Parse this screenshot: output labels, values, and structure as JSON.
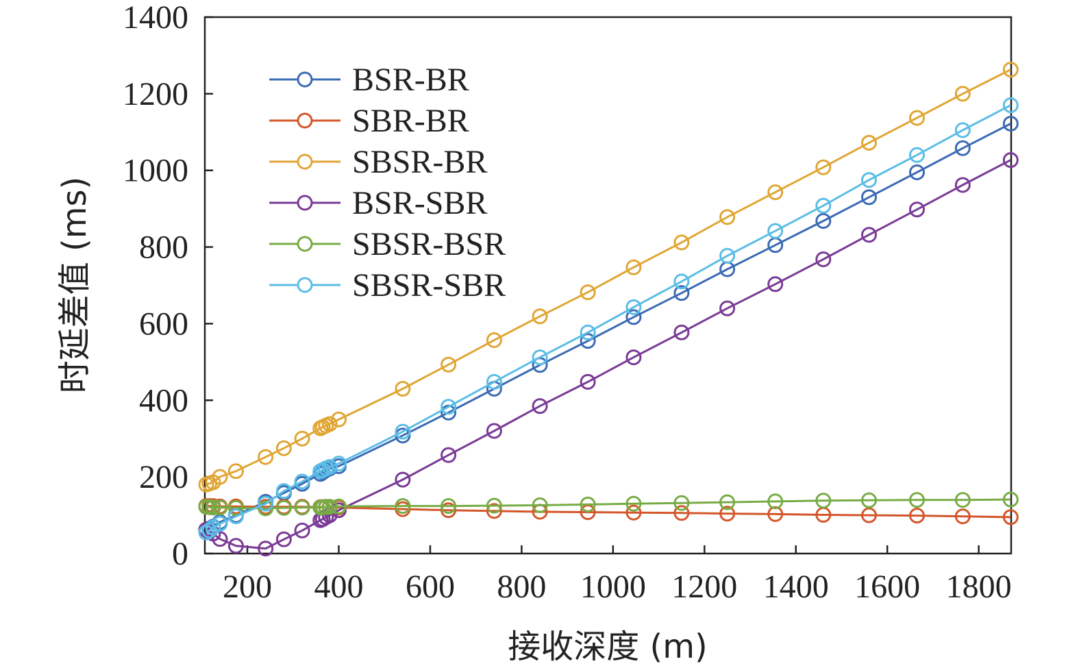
{
  "chart_data": {
    "type": "line",
    "title": "",
    "xlabel": "接收深度 (m)",
    "ylabel": "时延差值 (ms)",
    "xlim": [
      107,
      1871
    ],
    "ylim": [
      0,
      1400
    ],
    "x_ticks": [
      200,
      400,
      600,
      800,
      1000,
      1200,
      1400,
      1600,
      1800
    ],
    "y_ticks": [
      0,
      200,
      400,
      600,
      800,
      1000,
      1200,
      1400
    ],
    "grid": false,
    "legend_position": "top-left",
    "x": [
      110,
      117,
      125,
      140,
      175,
      240,
      280,
      320,
      360,
      365,
      372,
      380,
      400,
      540,
      640,
      740,
      840,
      945,
      1045,
      1150,
      1250,
      1355,
      1460,
      1560,
      1665,
      1765,
      1870
    ],
    "series": [
      {
        "name": "BSR-BR",
        "color": "#3B6BB4",
        "values": [
          62,
          65,
          70,
          82,
          100,
          135,
          158,
          182,
          208,
          212,
          218,
          222,
          228,
          308,
          368,
          430,
          492,
          555,
          617,
          680,
          742,
          805,
          868,
          930,
          995,
          1058,
          1122
        ]
      },
      {
        "name": "SBR-BR",
        "color": "#D4562A",
        "values": [
          124,
          124,
          124,
          123,
          123,
          122,
          122,
          122,
          121,
          121,
          121,
          121,
          120,
          116,
          113,
          111,
          109,
          108,
          107,
          106,
          104,
          103,
          101,
          100,
          99,
          97,
          95
        ]
      },
      {
        "name": "SBSR-BR",
        "color": "#E0A635",
        "values": [
          180,
          183,
          186,
          200,
          215,
          252,
          275,
          300,
          327,
          330,
          334,
          338,
          350,
          430,
          493,
          557,
          619,
          682,
          747,
          812,
          878,
          943,
          1008,
          1072,
          1137,
          1200,
          1263
        ]
      },
      {
        "name": "BSR-SBR",
        "color": "#7A3A96",
        "values": [
          62,
          58,
          52,
          38,
          20,
          13,
          37,
          60,
          87,
          90,
          95,
          100,
          113,
          193,
          257,
          320,
          385,
          448,
          512,
          577,
          640,
          703,
          768,
          832,
          898,
          962,
          1027
        ]
      },
      {
        "name": "SBSR-BSR",
        "color": "#77AC45",
        "values": [
          122,
          121,
          120,
          120,
          119,
          118,
          119,
          120,
          120,
          121,
          122,
          122,
          123,
          124,
          124,
          125,
          126,
          128,
          130,
          132,
          134,
          136,
          138,
          139,
          140,
          140,
          141
        ]
      },
      {
        "name": "SBSR-SBR",
        "color": "#5BBDE6",
        "values": [
          55,
          60,
          68,
          78,
          97,
          130,
          163,
          188,
          215,
          218,
          222,
          226,
          235,
          318,
          383,
          448,
          512,
          577,
          643,
          710,
          777,
          842,
          908,
          975,
          1040,
          1105,
          1170
        ]
      }
    ]
  }
}
